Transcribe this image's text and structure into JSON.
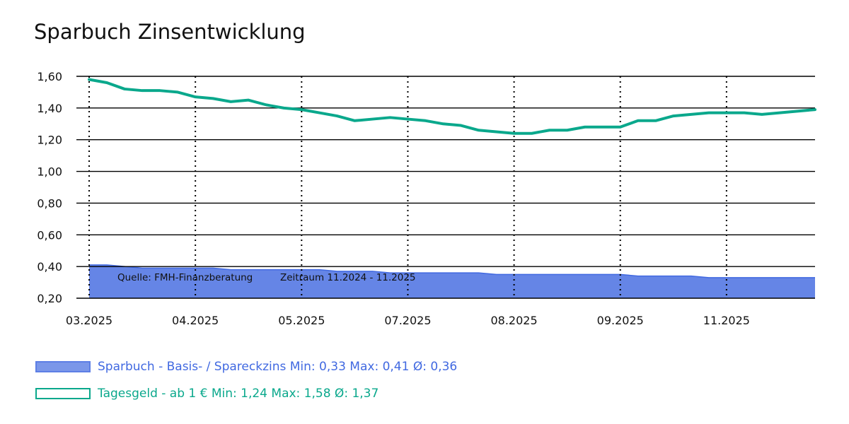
{
  "chart_data": {
    "type": "area",
    "title": "Sparbuch Zinsentwicklung",
    "xlabel": "",
    "ylabel": "",
    "ylim": [
      0.2,
      1.6
    ],
    "y_ticks": [
      "0,20",
      "0,40",
      "0,60",
      "0,80",
      "1,00",
      "1,20",
      "1,40",
      "1,60"
    ],
    "y_tick_values": [
      0.2,
      0.4,
      0.6,
      0.8,
      1.0,
      1.2,
      1.4,
      1.6
    ],
    "x_ticks": [
      "03.2025",
      "04.2025",
      "05.2025",
      "07.2025",
      "08.2025",
      "09.2025",
      "11.2025"
    ],
    "x_tick_positions": [
      0,
      6,
      12,
      18,
      24,
      30,
      36
    ],
    "xlim": [
      0,
      41
    ],
    "grid": true,
    "annotations": {
      "source": "Quelle: FMH-Finanzberatung",
      "period": "Zeitraum 11.2024 - 11.2025"
    },
    "series": [
      {
        "name": "Sparbuch - Basis- / Spareckzins",
        "kind": "area",
        "color": "#4169e1",
        "fill": "#6585e6",
        "legend_label": "Sparbuch - Basis- / Spareckzins Min: 0,33 Max: 0,41 Ø: 0,36",
        "values": [
          0.41,
          0.41,
          0.4,
          0.39,
          0.39,
          0.39,
          0.39,
          0.39,
          0.38,
          0.38,
          0.38,
          0.38,
          0.38,
          0.38,
          0.37,
          0.37,
          0.37,
          0.36,
          0.36,
          0.36,
          0.36,
          0.36,
          0.36,
          0.35,
          0.35,
          0.35,
          0.35,
          0.35,
          0.35,
          0.35,
          0.35,
          0.34,
          0.34,
          0.34,
          0.34,
          0.33,
          0.33,
          0.33,
          0.33,
          0.33,
          0.33,
          0.33
        ]
      },
      {
        "name": "Tagesgeld - ab 1 €",
        "kind": "line",
        "color": "#0aa88c",
        "legend_label": "Tagesgeld - ab 1 € Min: 1,24 Max: 1,58 Ø: 1,37",
        "values": [
          1.58,
          1.56,
          1.52,
          1.51,
          1.51,
          1.5,
          1.47,
          1.46,
          1.44,
          1.45,
          1.42,
          1.4,
          1.39,
          1.37,
          1.35,
          1.32,
          1.33,
          1.34,
          1.33,
          1.32,
          1.3,
          1.29,
          1.26,
          1.25,
          1.24,
          1.24,
          1.26,
          1.26,
          1.28,
          1.28,
          1.28,
          1.32,
          1.32,
          1.35,
          1.36,
          1.37,
          1.37,
          1.37,
          1.36,
          1.37,
          1.38,
          1.39
        ]
      }
    ]
  }
}
